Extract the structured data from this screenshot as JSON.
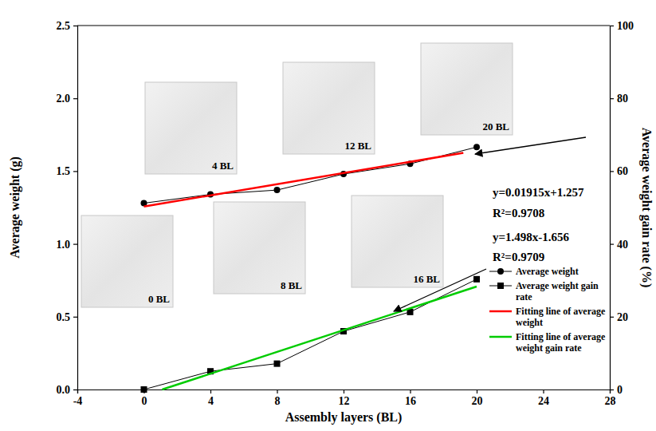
{
  "chart_data": {
    "type": "line",
    "x_label": "Assembly layers (BL)",
    "y_label": "Average weight (g)",
    "y2_label": "Average weight gain rate (%)",
    "x": [
      0,
      4,
      8,
      12,
      16,
      20
    ],
    "series": [
      {
        "name": "Average weight",
        "color": "#000000",
        "marker": "circle",
        "line_style": "solid",
        "values": [
          1.28,
          1.34,
          1.37,
          1.48,
          1.55,
          1.665
        ]
      },
      {
        "name": "Average weight gain rate",
        "color": "#000000",
        "marker": "square",
        "line_style": "solid",
        "axis": "y2",
        "values": [
          0,
          5.0,
          7.1,
          16.0,
          21.3,
          30.3
        ]
      },
      {
        "name": "Fitting line of average weight",
        "color": "#ff0000",
        "marker": "none",
        "line_style": "solid",
        "x": [
          0,
          19.2
        ],
        "values": [
          1.257,
          1.625
        ]
      },
      {
        "name": "Fitting line of average weight gain rate",
        "color": "#00cc00",
        "marker": "none",
        "line_style": "solid",
        "axis": "y2",
        "x": [
          1.1,
          20
        ],
        "values": [
          0,
          28.3
        ]
      }
    ],
    "xlim": [
      -4,
      28
    ],
    "xticks": [
      -4,
      0,
      4,
      8,
      12,
      16,
      20,
      24,
      28
    ],
    "ylim": [
      0,
      2.5
    ],
    "yticks": [
      {
        "value": 0,
        "label": "0.0"
      },
      0.5,
      {
        "value": 1,
        "label": "1.0"
      },
      1.5,
      {
        "value": 2,
        "label": "2.0"
      },
      2.5
    ],
    "y2lim": [
      0,
      100
    ],
    "y2ticks": [
      0,
      20,
      40,
      60,
      80,
      100
    ],
    "legend": "lower right",
    "grid": false,
    "image_labels": [
      "0 BL",
      "4 BL",
      "8 BL",
      "12 BL",
      "16 BL",
      "20 BL"
    ],
    "annotations": [
      "y=0.01915x+1.257",
      "R²=0.9708",
      "y=1.498x-1.656",
      "R²=0.9709"
    ]
  }
}
